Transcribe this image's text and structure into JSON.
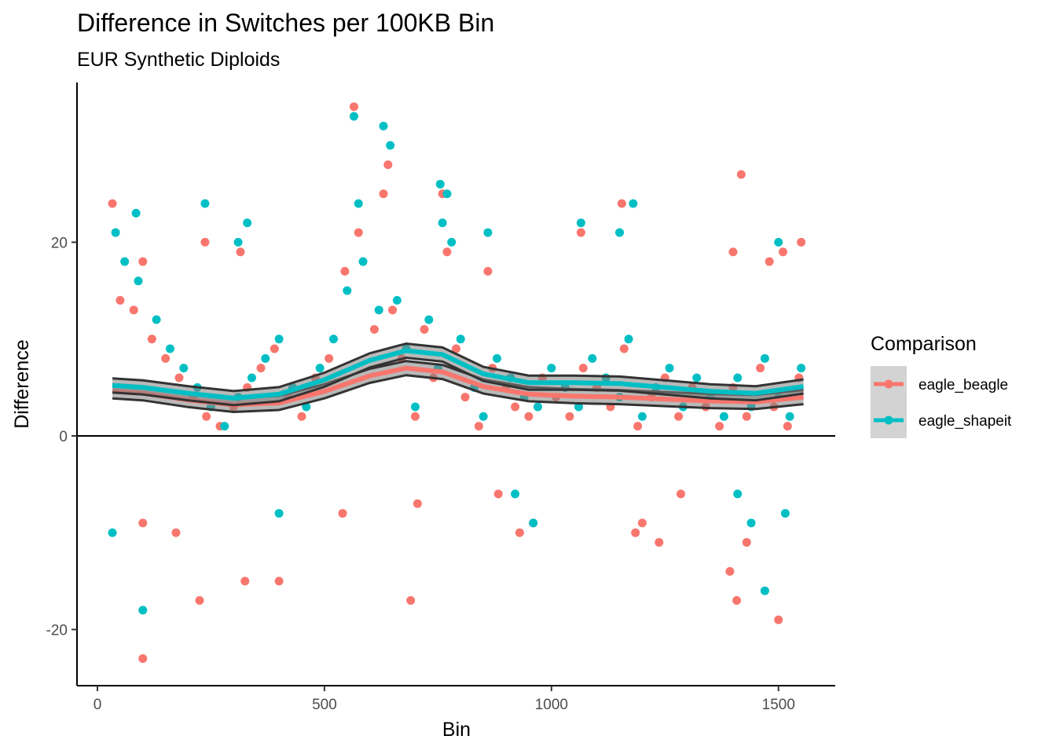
{
  "chart_data": {
    "type": "scatter",
    "title": "Difference in Switches per 100KB Bin",
    "subtitle": "EUR Synthetic Diploids",
    "xlabel": "Bin",
    "ylabel": "Difference",
    "xlim": [
      -45,
      1625
    ],
    "ylim": [
      -25.8,
      36.5
    ],
    "x_ticks": [
      0,
      500,
      1000,
      1500
    ],
    "y_ticks": [
      -20,
      0,
      20
    ],
    "x_tick_labels": [
      "0",
      "500",
      "1000",
      "1500"
    ],
    "y_tick_labels": [
      "-20",
      "0",
      "20"
    ],
    "reference_line_y": 0,
    "grid": false,
    "legend": {
      "title": "Comparison",
      "position": "right"
    },
    "series": [
      {
        "name": "eagle_beagle",
        "color": "#F8766D",
        "smooth": [
          [
            33,
            4.6
          ],
          [
            100,
            4.4
          ],
          [
            200,
            3.7
          ],
          [
            300,
            3.2
          ],
          [
            400,
            3.4
          ],
          [
            500,
            4.6
          ],
          [
            600,
            6.2
          ],
          [
            680,
            7.0
          ],
          [
            760,
            6.6
          ],
          [
            850,
            5.1
          ],
          [
            950,
            4.3
          ],
          [
            1050,
            4.1
          ],
          [
            1150,
            4.0
          ],
          [
            1250,
            3.8
          ],
          [
            1350,
            3.6
          ],
          [
            1450,
            3.5
          ],
          [
            1555,
            4.0
          ]
        ],
        "points": [
          [
            33,
            24
          ],
          [
            100,
            18
          ],
          [
            100,
            -9
          ],
          [
            100,
            -23
          ],
          [
            173,
            -10
          ],
          [
            225,
            -17
          ],
          [
            237,
            20
          ],
          [
            315,
            19
          ],
          [
            325,
            -15
          ],
          [
            400,
            -15
          ],
          [
            540,
            -8
          ],
          [
            565,
            34
          ],
          [
            630,
            25
          ],
          [
            640,
            28
          ],
          [
            690,
            -17
          ],
          [
            705,
            -7
          ],
          [
            760,
            25
          ],
          [
            860,
            17
          ],
          [
            883,
            -6
          ],
          [
            930,
            -10
          ],
          [
            960,
            -9
          ],
          [
            1065,
            21
          ],
          [
            1155,
            24
          ],
          [
            1185,
            -10
          ],
          [
            1200,
            -9
          ],
          [
            1237,
            -11
          ],
          [
            1285,
            -6
          ],
          [
            1393,
            -14
          ],
          [
            1408,
            -17
          ],
          [
            1418,
            27
          ],
          [
            1430,
            -11
          ],
          [
            1500,
            -19
          ],
          [
            1510,
            19
          ],
          [
            1550,
            20
          ],
          [
            1400,
            19
          ],
          [
            1480,
            18
          ],
          [
            50,
            14
          ],
          [
            80,
            13
          ],
          [
            120,
            10
          ],
          [
            150,
            8
          ],
          [
            180,
            6
          ],
          [
            210,
            4
          ],
          [
            240,
            2
          ],
          [
            270,
            1
          ],
          [
            300,
            3
          ],
          [
            330,
            5
          ],
          [
            360,
            7
          ],
          [
            390,
            9
          ],
          [
            420,
            4
          ],
          [
            450,
            2
          ],
          [
            480,
            6
          ],
          [
            510,
            8
          ],
          [
            545,
            17
          ],
          [
            575,
            21
          ],
          [
            610,
            11
          ],
          [
            650,
            13
          ],
          [
            670,
            8
          ],
          [
            700,
            2
          ],
          [
            720,
            11
          ],
          [
            740,
            6
          ],
          [
            770,
            19
          ],
          [
            790,
            9
          ],
          [
            810,
            4
          ],
          [
            840,
            1
          ],
          [
            870,
            7
          ],
          [
            900,
            5
          ],
          [
            920,
            3
          ],
          [
            950,
            2
          ],
          [
            980,
            6
          ],
          [
            1010,
            4
          ],
          [
            1040,
            2
          ],
          [
            1070,
            7
          ],
          [
            1100,
            5
          ],
          [
            1130,
            3
          ],
          [
            1160,
            9
          ],
          [
            1190,
            1
          ],
          [
            1220,
            4
          ],
          [
            1250,
            6
          ],
          [
            1280,
            2
          ],
          [
            1310,
            5
          ],
          [
            1340,
            3
          ],
          [
            1370,
            1
          ],
          [
            1400,
            5
          ],
          [
            1430,
            2
          ],
          [
            1460,
            7
          ],
          [
            1490,
            3
          ],
          [
            1520,
            1
          ],
          [
            1545,
            6
          ]
        ]
      },
      {
        "name": "eagle_shapeit",
        "color": "#00BFC4",
        "smooth": [
          [
            33,
            5.2
          ],
          [
            100,
            5.0
          ],
          [
            200,
            4.4
          ],
          [
            300,
            3.9
          ],
          [
            400,
            4.3
          ],
          [
            500,
            5.8
          ],
          [
            600,
            7.8
          ],
          [
            680,
            8.8
          ],
          [
            760,
            8.4
          ],
          [
            850,
            6.4
          ],
          [
            950,
            5.5
          ],
          [
            1050,
            5.5
          ],
          [
            1150,
            5.4
          ],
          [
            1250,
            5.0
          ],
          [
            1350,
            4.6
          ],
          [
            1450,
            4.4
          ],
          [
            1555,
            5.1
          ]
        ],
        "points": [
          [
            33,
            -10
          ],
          [
            40,
            21
          ],
          [
            85,
            23
          ],
          [
            100,
            -18
          ],
          [
            237,
            24
          ],
          [
            310,
            20
          ],
          [
            330,
            22
          ],
          [
            400,
            -8
          ],
          [
            565,
            33
          ],
          [
            575,
            24
          ],
          [
            630,
            32
          ],
          [
            645,
            30
          ],
          [
            755,
            26
          ],
          [
            770,
            25
          ],
          [
            760,
            22
          ],
          [
            860,
            21
          ],
          [
            920,
            -6
          ],
          [
            960,
            -9
          ],
          [
            1065,
            22
          ],
          [
            1150,
            21
          ],
          [
            1180,
            24
          ],
          [
            1410,
            -6
          ],
          [
            1470,
            -16
          ],
          [
            1500,
            20
          ],
          [
            1515,
            -8
          ],
          [
            1440,
            -9
          ],
          [
            60,
            18
          ],
          [
            90,
            16
          ],
          [
            130,
            12
          ],
          [
            160,
            9
          ],
          [
            190,
            7
          ],
          [
            220,
            5
          ],
          [
            250,
            3
          ],
          [
            280,
            1
          ],
          [
            310,
            4
          ],
          [
            340,
            6
          ],
          [
            370,
            8
          ],
          [
            400,
            10
          ],
          [
            430,
            5
          ],
          [
            460,
            3
          ],
          [
            490,
            7
          ],
          [
            520,
            10
          ],
          [
            550,
            15
          ],
          [
            585,
            18
          ],
          [
            620,
            13
          ],
          [
            660,
            14
          ],
          [
            680,
            9
          ],
          [
            700,
            3
          ],
          [
            730,
            12
          ],
          [
            750,
            7
          ],
          [
            780,
            20
          ],
          [
            800,
            10
          ],
          [
            830,
            5
          ],
          [
            850,
            2
          ],
          [
            880,
            8
          ],
          [
            910,
            6
          ],
          [
            940,
            4
          ],
          [
            970,
            3
          ],
          [
            1000,
            7
          ],
          [
            1030,
            5
          ],
          [
            1060,
            3
          ],
          [
            1090,
            8
          ],
          [
            1120,
            6
          ],
          [
            1150,
            4
          ],
          [
            1170,
            10
          ],
          [
            1200,
            2
          ],
          [
            1230,
            5
          ],
          [
            1260,
            7
          ],
          [
            1290,
            3
          ],
          [
            1320,
            6
          ],
          [
            1350,
            4
          ],
          [
            1380,
            2
          ],
          [
            1410,
            6
          ],
          [
            1440,
            3
          ],
          [
            1470,
            8
          ],
          [
            1500,
            4
          ],
          [
            1525,
            2
          ],
          [
            1550,
            7
          ]
        ]
      }
    ]
  }
}
